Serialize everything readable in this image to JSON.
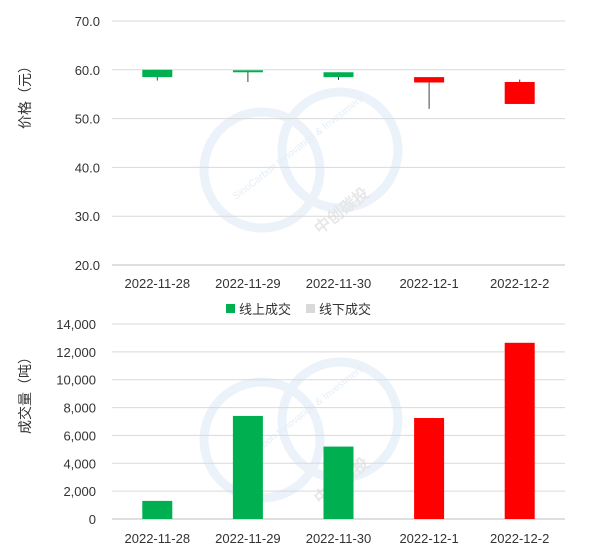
{
  "colors": {
    "up": "#ff0000",
    "down": "#00b050",
    "grid": "#d9d9d9",
    "axis": "#bfbfbf",
    "text": "#333333",
    "legend_inactive": "#d9d9d9",
    "watermark": "#dbe9f6"
  },
  "watermark": {
    "text_top": "SinoCarbon Innovation & Investment",
    "text_cn": "中创碳投"
  },
  "chart_data": [
    {
      "type": "candlestick",
      "ylabel": "价格（元）",
      "ylim": [
        20,
        70
      ],
      "yticks": [
        20,
        30,
        40,
        50,
        60,
        70
      ],
      "ytick_labels": [
        "20.0",
        "30.0",
        "40.0",
        "50.0",
        "60.0",
        "70.0"
      ],
      "grid": true,
      "categories": [
        "2022-11-28",
        "2022-11-29",
        "2022-11-30",
        "2022-12-1",
        "2022-12-2"
      ],
      "open": [
        60.0,
        59.9,
        59.5,
        57.4,
        53.0
      ],
      "close": [
        58.5,
        59.5,
        58.5,
        58.5,
        57.5
      ],
      "high": [
        60.0,
        59.9,
        59.5,
        58.5,
        58.0
      ],
      "low": [
        57.8,
        57.5,
        57.9,
        52.0,
        53.0
      ]
    },
    {
      "type": "bar",
      "ylabel": "成交量（吨）",
      "ylim": [
        0,
        14000
      ],
      "yticks": [
        0,
        2000,
        4000,
        6000,
        8000,
        10000,
        12000,
        14000
      ],
      "ytick_labels": [
        "0",
        "2,000",
        "4,000",
        "6,000",
        "8,000",
        "10,000",
        "12,000",
        "14,000"
      ],
      "grid": true,
      "legend": [
        {
          "label": "线上成交",
          "color": "#00b050"
        },
        {
          "label": "线下成交",
          "color": "#d9d9d9"
        }
      ],
      "legend_position": "top-center",
      "categories": [
        "2022-11-28",
        "2022-11-29",
        "2022-11-30",
        "2022-12-1",
        "2022-12-2"
      ],
      "series": [
        {
          "name": "线上成交",
          "values": [
            1300,
            7400,
            5200,
            7250,
            12650
          ]
        }
      ],
      "bar_colors": [
        "#00b050",
        "#00b050",
        "#00b050",
        "#ff0000",
        "#ff0000"
      ]
    }
  ]
}
